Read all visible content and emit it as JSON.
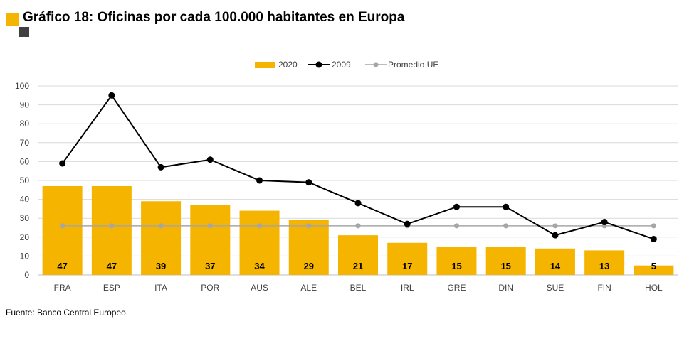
{
  "title": "Gráfico 18: Oficinas por cada 100.000 habitantes en Europa",
  "source": "Fuente: Banco Central Europeo.",
  "colors": {
    "bar": "#F5B400",
    "line2009": "#000000",
    "promedio": "#A6A6A6",
    "grid": "#D9D9D9",
    "accent_yellow": "#F5B400",
    "accent_dark": "#404040"
  },
  "chart_data": {
    "type": "bar",
    "categories": [
      "FRA",
      "ESP",
      "ITA",
      "POR",
      "AUS",
      "ALE",
      "BEL",
      "IRL",
      "GRE",
      "DIN",
      "SUE",
      "FIN",
      "HOL"
    ],
    "series": [
      {
        "name": "2020",
        "type": "bar",
        "values": [
          47,
          47,
          39,
          37,
          34,
          29,
          21,
          17,
          15,
          15,
          14,
          13,
          5
        ],
        "data_labels": true
      },
      {
        "name": "2009",
        "type": "line",
        "values": [
          59,
          95,
          57,
          61,
          50,
          49,
          38,
          27,
          36,
          36,
          21,
          28,
          19
        ]
      },
      {
        "name": "Promedio UE",
        "type": "line",
        "values": [
          26,
          26,
          26,
          26,
          26,
          26,
          26,
          26,
          26,
          26,
          26,
          26,
          26
        ]
      }
    ],
    "y_ticks": [
      0,
      10,
      20,
      30,
      40,
      50,
      60,
      70,
      80,
      90,
      100
    ],
    "ylim": [
      0,
      100
    ],
    "xlabel": "",
    "ylabel": "",
    "grid": true,
    "legend_position": "top-center"
  }
}
